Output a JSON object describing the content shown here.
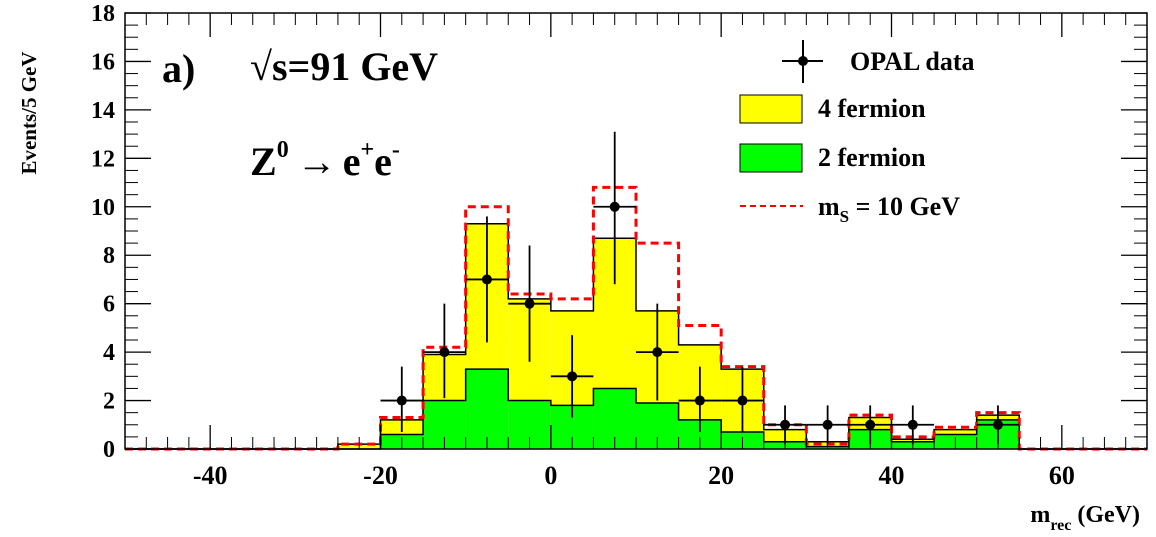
{
  "chart_data": {
    "type": "bar",
    "panel_label": "a)",
    "energy_label": "√s=91 GeV",
    "process": {
      "z": "Z",
      "z_sup": "0",
      "arrow": "→",
      "e1": "e",
      "e1_sup": "+",
      "e2": "e",
      "e2_sup": "-"
    },
    "ylabel": "Events/5 GeV",
    "xlabel": {
      "main": "m",
      "sub": "rec",
      "unit": " (GeV)"
    },
    "xlim": [
      -50,
      70
    ],
    "ylim": [
      0,
      18
    ],
    "x_ticks": [
      -40,
      -20,
      0,
      20,
      40,
      60
    ],
    "y_ticks": [
      0,
      2,
      4,
      6,
      8,
      10,
      12,
      14,
      16,
      18
    ],
    "bin_edges": [
      -50,
      -45,
      -40,
      -35,
      -30,
      -25,
      -20,
      -15,
      -10,
      -5,
      0,
      5,
      10,
      15,
      20,
      25,
      30,
      35,
      40,
      45,
      50,
      55,
      60,
      65,
      70
    ],
    "legend": {
      "placement": "top-right",
      "entries": [
        {
          "label": "OPAL data",
          "kind": "data"
        },
        {
          "label": "4 fermion",
          "kind": "fill",
          "color": "#ffff00"
        },
        {
          "label": "2 fermion",
          "kind": "fill",
          "color": "#00ff00"
        },
        {
          "label_main": "m",
          "label_sub": "S",
          "label_rest": " = 10 GeV",
          "kind": "dashed",
          "color": "#ff0000"
        }
      ]
    },
    "series": [
      {
        "name": "4 fermion",
        "color": "#ffff00",
        "values": [
          0,
          0,
          0,
          0,
          0,
          0.2,
          1.2,
          3.9,
          9.3,
          6.2,
          5.7,
          8.7,
          5.7,
          4.3,
          3.3,
          0.8,
          0.3,
          1.3,
          0.4,
          0.8,
          1.4,
          0,
          0,
          0
        ]
      },
      {
        "name": "2 fermion",
        "color": "#00ff00",
        "values": [
          0,
          0,
          0,
          0,
          0,
          0,
          0.6,
          2.0,
          3.3,
          2.0,
          1.8,
          2.5,
          1.9,
          1.2,
          0.7,
          0.3,
          0.1,
          0.8,
          0.3,
          0.6,
          1.2,
          0,
          0,
          0
        ]
      },
      {
        "name": "m_S = 10 GeV",
        "color": "#ff0000",
        "values": [
          0,
          0,
          0,
          0,
          0,
          0.2,
          1.3,
          4.2,
          10.0,
          6.4,
          6.2,
          10.8,
          8.5,
          5.1,
          3.4,
          1.0,
          0.2,
          1.4,
          0.5,
          0.9,
          1.5,
          0,
          0,
          0
        ]
      }
    ],
    "data_points": [
      {
        "x": -17.5,
        "y": 2,
        "yerr": [
          1.3,
          1.4
        ]
      },
      {
        "x": -12.5,
        "y": 4,
        "yerr": [
          1.9,
          2.0
        ]
      },
      {
        "x": -7.5,
        "y": 7,
        "yerr": [
          2.6,
          2.6
        ]
      },
      {
        "x": -2.5,
        "y": 6,
        "yerr": [
          2.4,
          2.4
        ]
      },
      {
        "x": 2.5,
        "y": 3,
        "yerr": [
          1.7,
          1.7
        ]
      },
      {
        "x": 7.5,
        "y": 10,
        "yerr": [
          3.2,
          3.1
        ]
      },
      {
        "x": 12.5,
        "y": 4,
        "yerr": [
          2.0,
          2.0
        ]
      },
      {
        "x": 17.5,
        "y": 2,
        "yerr": [
          1.3,
          1.4
        ]
      },
      {
        "x": 22.5,
        "y": 2,
        "yerr": [
          1.3,
          1.4
        ]
      },
      {
        "x": 27.5,
        "y": 1,
        "yerr": [
          0.8,
          0.8
        ]
      },
      {
        "x": 32.5,
        "y": 1,
        "yerr": [
          0.8,
          0.8
        ]
      },
      {
        "x": 37.5,
        "y": 1,
        "yerr": [
          0.8,
          0.8
        ]
      },
      {
        "x": 42.5,
        "y": 1,
        "yerr": [
          0.8,
          0.8
        ]
      },
      {
        "x": 52.5,
        "y": 1,
        "yerr": [
          0.8,
          0.8
        ]
      }
    ]
  }
}
